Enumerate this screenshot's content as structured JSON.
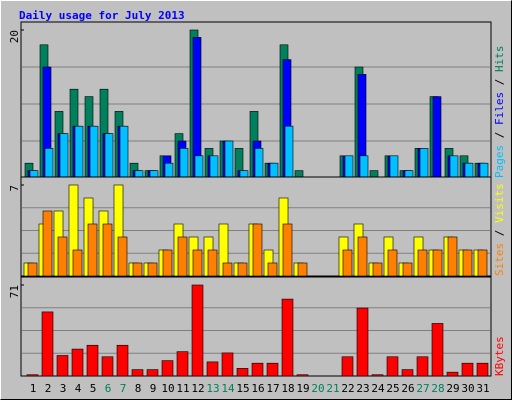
{
  "chart_data": [
    {
      "type": "bar",
      "title": "Daily usage for July 2013",
      "ylim": [
        0,
        20
      ],
      "yticks": [
        20
      ],
      "series": [
        {
          "name": "Hits",
          "color": "#00805c",
          "values": [
            2,
            18,
            9,
            12,
            11,
            12,
            9,
            2,
            1,
            3,
            6,
            20,
            4,
            5,
            4,
            9,
            2,
            18,
            1,
            0,
            0,
            3,
            15,
            1,
            3,
            1,
            4,
            11,
            4,
            3,
            2
          ]
        },
        {
          "name": "Files",
          "color": "#0000ff",
          "values": [
            1,
            15,
            6,
            7,
            7,
            6,
            7,
            1,
            1,
            3,
            5,
            19,
            3,
            5,
            1,
            5,
            2,
            16,
            0,
            0,
            0,
            3,
            14,
            0,
            3,
            1,
            4,
            11,
            3,
            2,
            2
          ]
        },
        {
          "name": "Pages",
          "color": "#00c0ff",
          "values": [
            1,
            4,
            6,
            7,
            7,
            6,
            7,
            1,
            1,
            2,
            4,
            3,
            3,
            5,
            1,
            4,
            2,
            7,
            0,
            0,
            0,
            3,
            3,
            0,
            3,
            1,
            4,
            0,
            3,
            2,
            2
          ]
        }
      ]
    },
    {
      "type": "bar",
      "ylim": [
        0,
        7
      ],
      "yticks": [
        7
      ],
      "series": [
        {
          "name": "Visits",
          "color": "#ffff00",
          "values": [
            1,
            4,
            5,
            7,
            6,
            5,
            7,
            1,
            1,
            2,
            4,
            3,
            3,
            4,
            1,
            4,
            2,
            6,
            1,
            0,
            0,
            3,
            4,
            1,
            3,
            1,
            3,
            2,
            3,
            2,
            2
          ]
        },
        {
          "name": "Sites",
          "color": "#ff8000",
          "values": [
            1,
            5,
            3,
            2,
            4,
            4,
            3,
            1,
            1,
            2,
            3,
            2,
            2,
            1,
            1,
            4,
            1,
            4,
            1,
            0,
            0,
            2,
            3,
            1,
            2,
            1,
            2,
            2,
            3,
            2,
            2
          ]
        }
      ]
    },
    {
      "type": "bar",
      "ylim": [
        0,
        71
      ],
      "yticks": [
        71
      ],
      "categories": [
        "1",
        "2",
        "3",
        "4",
        "5",
        "6",
        "7",
        "8",
        "9",
        "10",
        "11",
        "12",
        "13",
        "14",
        "15",
        "16",
        "17",
        "18",
        "19",
        "20",
        "21",
        "22",
        "23",
        "24",
        "25",
        "26",
        "27",
        "28",
        "29",
        "30",
        "31"
      ],
      "category_colors": [
        "#000",
        "#000",
        "#000",
        "#000",
        "#000",
        "#00805c",
        "#00805c",
        "#000",
        "#000",
        "#000",
        "#000",
        "#000",
        "#00805c",
        "#00805c",
        "#000",
        "#000",
        "#000",
        "#000",
        "#000",
        "#00805c",
        "#00805c",
        "#000",
        "#000",
        "#000",
        "#000",
        "#000",
        "#00805c",
        "#00805c",
        "#000",
        "#000",
        "#000"
      ],
      "series": [
        {
          "name": "KBytes",
          "color": "#ff0000",
          "values": [
            1,
            50,
            16,
            21,
            24,
            15,
            24,
            5,
            5,
            12,
            19,
            71,
            11,
            18,
            6,
            10,
            10,
            60,
            1,
            0,
            0,
            15,
            53,
            1,
            15,
            5,
            15,
            41,
            3,
            10,
            10
          ]
        }
      ]
    }
  ]
}
